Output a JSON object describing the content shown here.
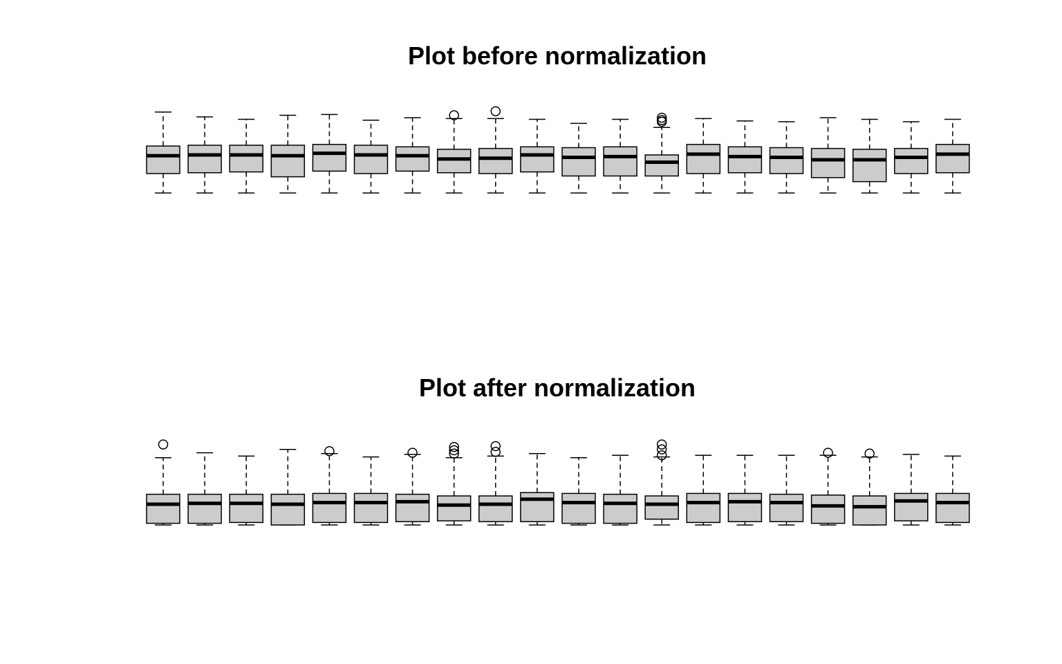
{
  "chart_data": [
    {
      "type": "boxplot",
      "title": "Plot before normalization",
      "ylim": [
        0,
        1
      ],
      "grid": false,
      "boxes": [
        {
          "q1": 0.24,
          "median": 0.46,
          "q3": 0.58,
          "whislo": 0.0,
          "whishi": 1.0,
          "outliers": []
        },
        {
          "q1": 0.25,
          "median": 0.47,
          "q3": 0.59,
          "whislo": 0.0,
          "whishi": 0.94,
          "outliers": []
        },
        {
          "q1": 0.26,
          "median": 0.47,
          "q3": 0.59,
          "whislo": 0.0,
          "whishi": 0.91,
          "outliers": []
        },
        {
          "q1": 0.2,
          "median": 0.46,
          "q3": 0.59,
          "whislo": 0.0,
          "whishi": 0.96,
          "outliers": []
        },
        {
          "q1": 0.27,
          "median": 0.49,
          "q3": 0.6,
          "whislo": 0.0,
          "whishi": 0.97,
          "outliers": []
        },
        {
          "q1": 0.24,
          "median": 0.47,
          "q3": 0.59,
          "whislo": 0.0,
          "whishi": 0.9,
          "outliers": []
        },
        {
          "q1": 0.27,
          "median": 0.46,
          "q3": 0.57,
          "whislo": 0.0,
          "whishi": 0.93,
          "outliers": []
        },
        {
          "q1": 0.25,
          "median": 0.42,
          "q3": 0.54,
          "whislo": 0.0,
          "whishi": 0.92,
          "outliers": [
            0.96
          ]
        },
        {
          "q1": 0.24,
          "median": 0.43,
          "q3": 0.55,
          "whislo": 0.0,
          "whishi": 0.92,
          "outliers": [
            1.01
          ]
        },
        {
          "q1": 0.26,
          "median": 0.47,
          "q3": 0.57,
          "whislo": 0.0,
          "whishi": 0.91,
          "outliers": []
        },
        {
          "q1": 0.21,
          "median": 0.44,
          "q3": 0.56,
          "whislo": 0.0,
          "whishi": 0.86,
          "outliers": []
        },
        {
          "q1": 0.21,
          "median": 0.45,
          "q3": 0.57,
          "whislo": 0.0,
          "whishi": 0.91,
          "outliers": []
        },
        {
          "q1": 0.21,
          "median": 0.38,
          "q3": 0.47,
          "whislo": 0.0,
          "whishi": 0.81,
          "outliers": [
            0.88,
            0.9,
            0.93
          ]
        },
        {
          "q1": 0.24,
          "median": 0.48,
          "q3": 0.6,
          "whislo": 0.0,
          "whishi": 0.92,
          "outliers": []
        },
        {
          "q1": 0.25,
          "median": 0.45,
          "q3": 0.57,
          "whislo": 0.0,
          "whishi": 0.89,
          "outliers": []
        },
        {
          "q1": 0.24,
          "median": 0.44,
          "q3": 0.56,
          "whislo": 0.0,
          "whishi": 0.88,
          "outliers": []
        },
        {
          "q1": 0.19,
          "median": 0.41,
          "q3": 0.55,
          "whislo": 0.0,
          "whishi": 0.93,
          "outliers": []
        },
        {
          "q1": 0.14,
          "median": 0.41,
          "q3": 0.54,
          "whislo": 0.0,
          "whishi": 0.91,
          "outliers": []
        },
        {
          "q1": 0.24,
          "median": 0.44,
          "q3": 0.55,
          "whislo": 0.0,
          "whishi": 0.88,
          "outliers": []
        },
        {
          "q1": 0.25,
          "median": 0.48,
          "q3": 0.6,
          "whislo": 0.0,
          "whishi": 0.91,
          "outliers": []
        }
      ]
    },
    {
      "type": "boxplot",
      "title": "Plot after normalization",
      "ylim": [
        0,
        1
      ],
      "grid": false,
      "boxes": [
        {
          "q1": 0.02,
          "median": 0.25,
          "q3": 0.37,
          "whislo": 0.0,
          "whishi": 0.81,
          "outliers": [
            0.97
          ]
        },
        {
          "q1": 0.02,
          "median": 0.26,
          "q3": 0.37,
          "whislo": 0.0,
          "whishi": 0.87,
          "outliers": []
        },
        {
          "q1": 0.03,
          "median": 0.26,
          "q3": 0.37,
          "whislo": 0.0,
          "whishi": 0.83,
          "outliers": []
        },
        {
          "q1": 0.0,
          "median": 0.25,
          "q3": 0.37,
          "whislo": 0.0,
          "whishi": 0.91,
          "outliers": []
        },
        {
          "q1": 0.03,
          "median": 0.27,
          "q3": 0.38,
          "whislo": 0.0,
          "whishi": 0.86,
          "outliers": [
            0.89
          ]
        },
        {
          "q1": 0.03,
          "median": 0.27,
          "q3": 0.38,
          "whislo": 0.0,
          "whishi": 0.82,
          "outliers": []
        },
        {
          "q1": 0.04,
          "median": 0.28,
          "q3": 0.37,
          "whislo": 0.0,
          "whishi": 0.85,
          "outliers": [
            0.87
          ]
        },
        {
          "q1": 0.05,
          "median": 0.24,
          "q3": 0.35,
          "whislo": 0.0,
          "whishi": 0.81,
          "outliers": [
            0.86,
            0.9,
            0.94
          ]
        },
        {
          "q1": 0.04,
          "median": 0.25,
          "q3": 0.35,
          "whislo": 0.0,
          "whishi": 0.83,
          "outliers": [
            0.88,
            0.95
          ]
        },
        {
          "q1": 0.04,
          "median": 0.31,
          "q3": 0.39,
          "whislo": 0.0,
          "whishi": 0.86,
          "outliers": []
        },
        {
          "q1": 0.02,
          "median": 0.27,
          "q3": 0.38,
          "whislo": 0.0,
          "whishi": 0.81,
          "outliers": []
        },
        {
          "q1": 0.02,
          "median": 0.26,
          "q3": 0.37,
          "whislo": 0.0,
          "whishi": 0.84,
          "outliers": []
        },
        {
          "q1": 0.07,
          "median": 0.25,
          "q3": 0.35,
          "whislo": 0.0,
          "whishi": 0.82,
          "outliers": [
            0.84,
            0.91,
            0.97
          ]
        },
        {
          "q1": 0.03,
          "median": 0.27,
          "q3": 0.38,
          "whislo": 0.0,
          "whishi": 0.84,
          "outliers": []
        },
        {
          "q1": 0.04,
          "median": 0.28,
          "q3": 0.38,
          "whislo": 0.0,
          "whishi": 0.84,
          "outliers": []
        },
        {
          "q1": 0.04,
          "median": 0.27,
          "q3": 0.37,
          "whislo": 0.0,
          "whishi": 0.84,
          "outliers": []
        },
        {
          "q1": 0.02,
          "median": 0.23,
          "q3": 0.36,
          "whislo": 0.0,
          "whishi": 0.84,
          "outliers": [
            0.87
          ]
        },
        {
          "q1": 0.0,
          "median": 0.22,
          "q3": 0.35,
          "whislo": 0.0,
          "whishi": 0.82,
          "outliers": [
            0.86
          ]
        },
        {
          "q1": 0.05,
          "median": 0.29,
          "q3": 0.38,
          "whislo": 0.0,
          "whishi": 0.85,
          "outliers": []
        },
        {
          "q1": 0.03,
          "median": 0.27,
          "q3": 0.38,
          "whislo": 0.0,
          "whishi": 0.83,
          "outliers": []
        }
      ]
    }
  ]
}
